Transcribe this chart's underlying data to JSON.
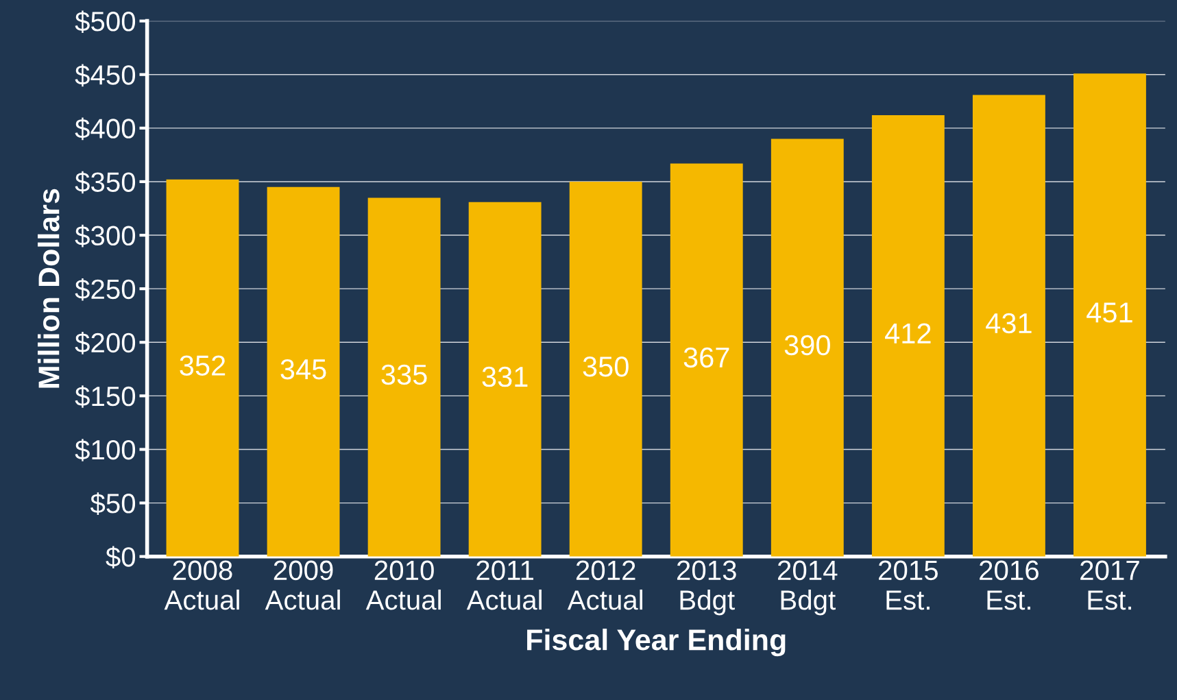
{
  "chart_data": {
    "type": "bar",
    "xlabel": "Fiscal Year Ending",
    "ylabel": "Million Dollars",
    "categories": [
      "2008\nActual",
      "2009\nActual",
      "2010\nActual",
      "2011\nActual",
      "2012\nActual",
      "2013\nBdgt",
      "2014\nBdgt",
      "2015\nEst.",
      "2016\nEst.",
      "2017\nEst."
    ],
    "values": [
      352,
      345,
      335,
      331,
      350,
      367,
      390,
      412,
      431,
      451
    ],
    "color": "#f5b800",
    "data_labels": true,
    "grid": "y",
    "legend": false,
    "ylim": [
      0,
      500
    ],
    "yticks": [
      {
        "value": 0,
        "label": "$0"
      },
      {
        "value": 50,
        "label": "$50"
      },
      {
        "value": 100,
        "label": "$100"
      },
      {
        "value": 150,
        "label": "$150"
      },
      {
        "value": 200,
        "label": "$200"
      },
      {
        "value": 250,
        "label": "$250"
      },
      {
        "value": 300,
        "label": "$300"
      },
      {
        "value": 350,
        "label": "$350"
      },
      {
        "value": 400,
        "label": "$400"
      },
      {
        "value": 450,
        "label": "$450"
      },
      {
        "value": 500,
        "label": "$500"
      }
    ]
  }
}
